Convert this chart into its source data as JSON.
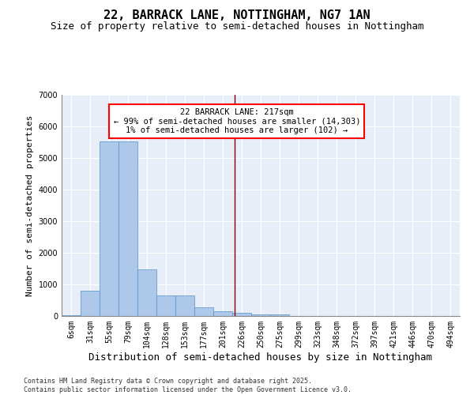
{
  "title": "22, BARRACK LANE, NOTTINGHAM, NG7 1AN",
  "subtitle": "Size of property relative to semi-detached houses in Nottingham",
  "xlabel": "Distribution of semi-detached houses by size in Nottingham",
  "ylabel": "Number of semi-detached properties",
  "categories": [
    "6sqm",
    "31sqm",
    "55sqm",
    "79sqm",
    "104sqm",
    "128sqm",
    "153sqm",
    "177sqm",
    "201sqm",
    "226sqm",
    "250sqm",
    "275sqm",
    "299sqm",
    "323sqm",
    "348sqm",
    "372sqm",
    "397sqm",
    "421sqm",
    "446sqm",
    "470sqm",
    "494sqm"
  ],
  "values": [
    30,
    790,
    5530,
    5530,
    1480,
    640,
    640,
    270,
    140,
    100,
    60,
    50,
    0,
    0,
    0,
    0,
    0,
    0,
    0,
    0,
    0
  ],
  "bar_color": "#adc8e8",
  "bar_edge_color": "#5590c8",
  "vline_color": "#800000",
  "annotation_text": "22 BARRACK LANE: 217sqm\n← 99% of semi-detached houses are smaller (14,303)\n1% of semi-detached houses are larger (102) →",
  "ylim": [
    0,
    7000
  ],
  "yticks": [
    0,
    1000,
    2000,
    3000,
    4000,
    5000,
    6000,
    7000
  ],
  "background_color": "#e8eef8",
  "footer": "Contains HM Land Registry data © Crown copyright and database right 2025.\nContains public sector information licensed under the Open Government Licence v3.0.",
  "title_fontsize": 11,
  "subtitle_fontsize": 9,
  "xlabel_fontsize": 9,
  "ylabel_fontsize": 8,
  "tick_fontsize": 7,
  "footer_fontsize": 6
}
